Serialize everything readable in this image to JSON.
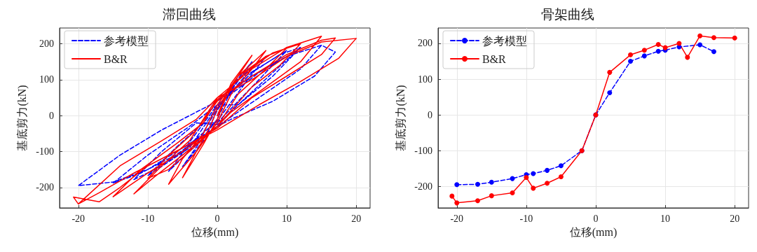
{
  "chart_data": [
    {
      "type": "line",
      "title": "滞回曲线",
      "xlabel": "位移(mm)",
      "ylabel": "基底剪力(kN)",
      "xlim": [
        -22.7,
        22
      ],
      "ylim": [
        -257,
        244
      ],
      "xticks": [
        -20,
        -10,
        0,
        10,
        20
      ],
      "yticks": [
        -200,
        -100,
        0,
        100,
        200
      ],
      "grid": true,
      "legend": "top left",
      "marker": "none",
      "series": [
        {
          "name": "参考模型",
          "color": "#0000ff",
          "line_style": "dashed",
          "x": [
            0,
            2,
            5,
            2,
            0,
            -2,
            -5,
            -2,
            0,
            3,
            7,
            4,
            0,
            -4,
            -7,
            -3,
            0,
            4,
            10,
            6,
            2,
            0,
            -2,
            -6,
            -10,
            -4,
            0,
            5,
            9,
            12,
            8,
            3,
            0,
            -3,
            -8,
            -12,
            -9,
            -5,
            0,
            3,
            8,
            12,
            11,
            6,
            0,
            -4,
            -10,
            -15,
            -11,
            -6,
            0,
            6,
            12,
            15,
            17,
            14,
            8,
            2,
            0,
            -5,
            -10,
            -15,
            -20,
            -14,
            -8,
            -3,
            0,
            5,
            10,
            15
          ],
          "values": [
            0,
            80,
            150,
            70,
            -10,
            -60,
            -142,
            -70,
            15,
            100,
            165,
            90,
            -15,
            -80,
            -155,
            -80,
            20,
            110,
            181,
            100,
            20,
            -20,
            -20,
            -90,
            -167,
            -90,
            25,
            120,
            170,
            190,
            110,
            30,
            -25,
            -20,
            -100,
            -178,
            -150,
            -100,
            30,
            30,
            120,
            190,
            175,
            120,
            30,
            -30,
            -110,
            -188,
            -160,
            -110,
            -30,
            50,
            130,
            196,
            177,
            110,
            40,
            -10,
            -30,
            -90,
            -150,
            -185,
            -195,
            -110,
            -40,
            10,
            40,
            110,
            165,
            196
          ]
        },
        {
          "name": "B&R",
          "color": "#ff0000",
          "line_style": "solid",
          "x": [
            0,
            2,
            5,
            3,
            1,
            0,
            -2,
            -5,
            -3,
            -1,
            0,
            3,
            7,
            5,
            2,
            0,
            -3,
            -7,
            -5,
            -2,
            0,
            3,
            7,
            10,
            7,
            3,
            0,
            -4,
            -7,
            -10,
            -7,
            -3,
            0,
            4,
            8,
            12,
            9,
            5,
            0,
            -5,
            -9,
            -12,
            -8,
            -4,
            0,
            5,
            10,
            15,
            12,
            7,
            2,
            0,
            -5,
            -10,
            -15,
            -11,
            -6,
            -2,
            0,
            5,
            10,
            15,
            17,
            15,
            10,
            5,
            0,
            -5,
            -10,
            -14,
            -17,
            -20.7,
            -20,
            -14,
            -8,
            -3,
            0,
            5,
            10,
            15,
            20,
            17.5,
            12,
            6,
            0,
            -6,
            -12,
            -17,
            -20
          ],
          "values": [
            0,
            90,
            168,
            110,
            40,
            -10,
            -80,
            -173,
            -100,
            -30,
            20,
            110,
            181,
            130,
            60,
            -20,
            -100,
            -191,
            -120,
            -50,
            30,
            110,
            165,
            188,
            130,
            60,
            -30,
            -100,
            -150,
            -175,
            -110,
            -40,
            40,
            120,
            175,
            200,
            140,
            80,
            -30,
            -110,
            -170,
            -218,
            -140,
            -70,
            50,
            130,
            190,
            221,
            150,
            80,
            10,
            -30,
            -100,
            -160,
            -226,
            -150,
            -80,
            -20,
            45,
            110,
            170,
            210,
            216,
            170,
            110,
            50,
            -35,
            -90,
            -140,
            -200,
            -240,
            -227,
            -246,
            -140,
            -70,
            -10,
            50,
            100,
            165,
            205,
            215,
            160,
            95,
            30,
            -40,
            -100,
            -160,
            -215,
            -246
          ]
        }
      ]
    },
    {
      "type": "line",
      "title": "骨架曲线",
      "xlabel": "位移(mm)",
      "ylabel": "基底剪力(kN)",
      "xlim": [
        -22.7,
        22
      ],
      "ylim": [
        -260,
        243
      ],
      "xticks": [
        -20,
        -10,
        0,
        10,
        20
      ],
      "yticks": [
        -200,
        -100,
        0,
        100,
        200
      ],
      "grid": true,
      "legend": "top left",
      "marker": "circle",
      "series": [
        {
          "name": "参考模型",
          "color": "#0000ff",
          "line_style": "dashed",
          "x": [
            -20,
            -17,
            -15,
            -12,
            -10,
            -9,
            -7,
            -5,
            -2,
            0,
            2,
            5,
            7,
            9,
            10,
            12,
            15,
            17
          ],
          "values": [
            -195,
            -194,
            -188,
            -178,
            -167,
            -164,
            -155,
            -142,
            -100,
            0,
            62,
            150,
            165,
            178,
            181,
            190,
            196,
            177
          ]
        },
        {
          "name": "B&R",
          "color": "#ff0000",
          "line_style": "solid",
          "x": [
            -20.7,
            -20,
            -17,
            -15,
            -12,
            -10,
            -9,
            -7,
            -5,
            -2,
            0,
            2,
            5,
            7,
            9,
            10,
            12,
            13.2,
            15,
            17,
            20
          ],
          "values": [
            -227,
            -246,
            -240,
            -226,
            -218,
            -175,
            -205,
            -191,
            -173,
            -100,
            0,
            119,
            168,
            181,
            197,
            188,
            200,
            161,
            221,
            216,
            215
          ]
        }
      ]
    }
  ]
}
